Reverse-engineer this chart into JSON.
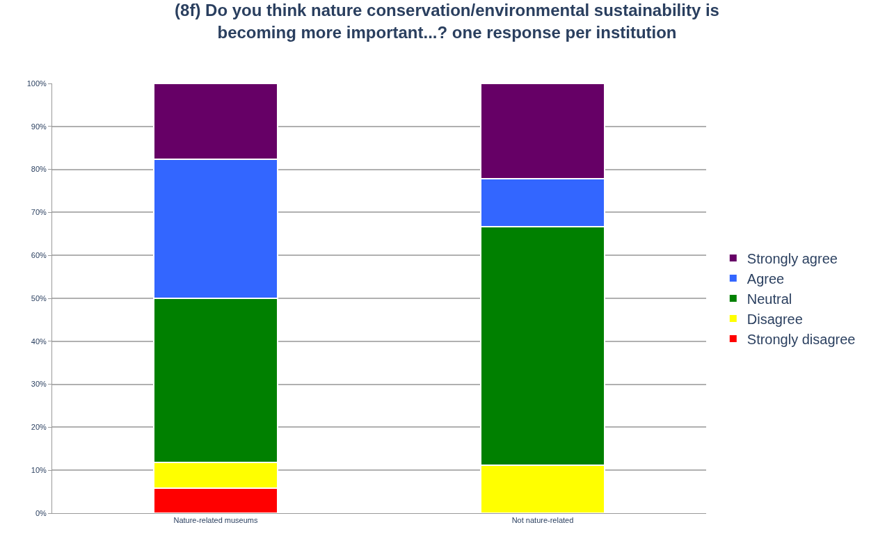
{
  "chart_data": {
    "type": "bar",
    "stacked": true,
    "title": "(8f) Do you think nature conservation/environmental sustainability is becoming more important...? one response per institution",
    "categories": [
      "Nature-related museums",
      "Not nature-related"
    ],
    "series": [
      {
        "name": "Strongly disagree",
        "color": "#ff0000",
        "values": [
          5.9,
          0
        ]
      },
      {
        "name": "Disagree",
        "color": "#ffff00",
        "values": [
          5.9,
          11.1
        ]
      },
      {
        "name": "Neutral",
        "color": "#008000",
        "values": [
          38.2,
          55.6
        ]
      },
      {
        "name": "Agree",
        "color": "#3366ff",
        "values": [
          32.4,
          11.1
        ]
      },
      {
        "name": "Strongly agree",
        "color": "#660066",
        "values": [
          17.6,
          22.2
        ]
      }
    ],
    "ylim": [
      0,
      100
    ],
    "yticks": [
      {
        "value": 0,
        "label": "0%"
      },
      {
        "value": 10,
        "label": "10%"
      },
      {
        "value": 20,
        "label": "20%"
      },
      {
        "value": 30,
        "label": "30%"
      },
      {
        "value": 40,
        "label": "40%"
      },
      {
        "value": 50,
        "label": "50%"
      },
      {
        "value": 60,
        "label": "60%"
      },
      {
        "value": 70,
        "label": "70%"
      },
      {
        "value": 80,
        "label": "80%"
      },
      {
        "value": 90,
        "label": "90%"
      },
      {
        "value": 100,
        "label": "100%"
      }
    ],
    "grid": "y",
    "legend": "right"
  }
}
